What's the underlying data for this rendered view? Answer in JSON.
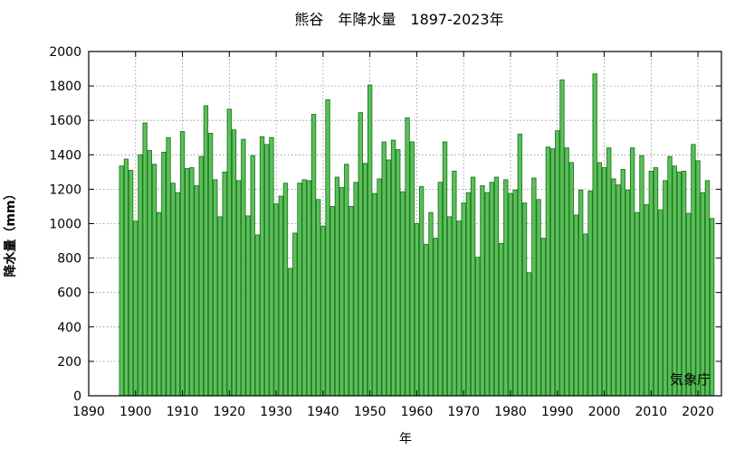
{
  "chart_data": {
    "type": "bar",
    "title": "熊谷　年降水量　1897-2023年",
    "xlabel": "年",
    "ylabel": "降水量（mm）",
    "credit": "気象庁",
    "grid": true,
    "xlim": [
      1890,
      2025
    ],
    "ylim": [
      0,
      2000
    ],
    "x_ticks": [
      1890,
      1900,
      1910,
      1920,
      1930,
      1940,
      1950,
      1960,
      1970,
      1980,
      1990,
      2000,
      2010,
      2020
    ],
    "y_ticks": [
      0,
      200,
      400,
      600,
      800,
      1000,
      1200,
      1400,
      1600,
      1800,
      2000
    ],
    "bar_color": "#5cbf5c",
    "bar_edge_color": "#1e7a1e",
    "start_year": 1897,
    "values": [
      1335,
      1375,
      1310,
      1015,
      1400,
      1585,
      1425,
      1345,
      1065,
      1415,
      1500,
      1235,
      1180,
      1535,
      1320,
      1325,
      1220,
      1390,
      1685,
      1525,
      1255,
      1040,
      1300,
      1665,
      1545,
      1250,
      1490,
      1045,
      1395,
      935,
      1505,
      1460,
      1500,
      1115,
      1160,
      1235,
      740,
      945,
      1235,
      1255,
      1250,
      1635,
      1140,
      985,
      1720,
      1100,
      1270,
      1210,
      1345,
      1100,
      1240,
      1645,
      1350,
      1805,
      1175,
      1260,
      1475,
      1370,
      1485,
      1430,
      1185,
      1615,
      1475,
      1000,
      1215,
      880,
      1065,
      915,
      1240,
      1475,
      1040,
      1305,
      1015,
      1120,
      1180,
      1270,
      805,
      1220,
      1180,
      1240,
      1270,
      885,
      1255,
      1175,
      1195,
      1520,
      1120,
      715,
      1265,
      1140,
      915,
      1445,
      1435,
      1540,
      1835,
      1440,
      1355,
      1050,
      1195,
      940,
      1190,
      1870,
      1355,
      1325,
      1440,
      1260,
      1225,
      1315,
      1195,
      1440,
      1065,
      1395,
      1110,
      1305,
      1325,
      1080,
      1250,
      1390,
      1335,
      1300,
      1305,
      1060,
      1460,
      1365,
      1180,
      1250,
      1030
    ]
  }
}
